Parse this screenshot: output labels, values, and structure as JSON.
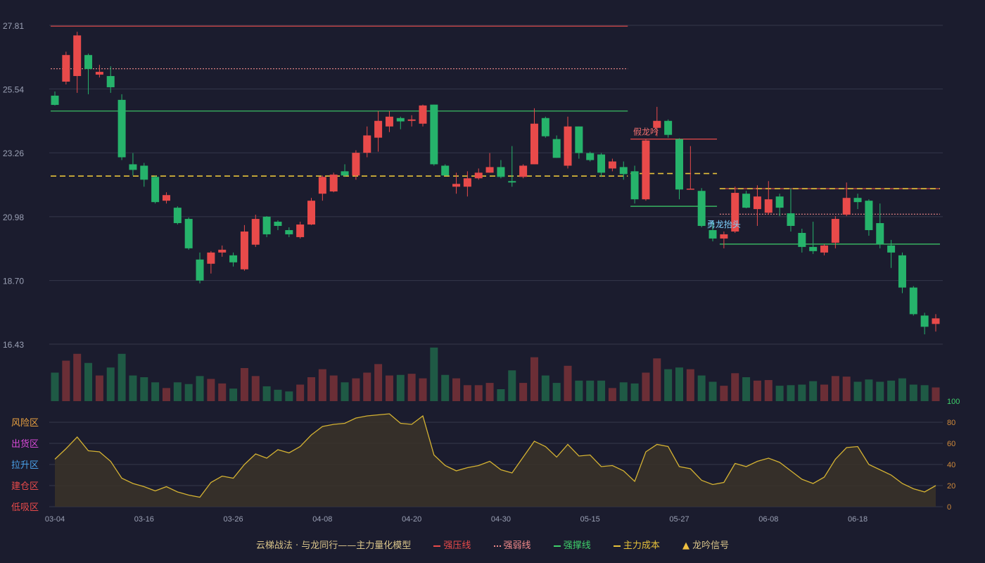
{
  "chart_data": {
    "type": "candlestick",
    "price_axis": {
      "ticks": [
        27.81,
        25.54,
        23.26,
        20.98,
        18.7,
        16.43
      ],
      "range": [
        16.43,
        27.81
      ]
    },
    "x_tick_labels": [
      "03-04",
      "03-16",
      "03-26",
      "04-08",
      "04-20",
      "04-30",
      "05-15",
      "05-27",
      "06-08",
      "06-18"
    ],
    "x_tick_indices": [
      0,
      8,
      16,
      24,
      32,
      40,
      48,
      56,
      64,
      72
    ],
    "candles": [
      [
        25.3,
        24.97,
        25.45,
        24.95
      ],
      [
        25.8,
        26.75,
        26.87,
        25.7
      ],
      [
        26.0,
        27.45,
        27.58,
        25.4
      ],
      [
        26.75,
        26.25,
        26.8,
        25.35
      ],
      [
        26.05,
        26.15,
        26.4,
        25.95
      ],
      [
        26.0,
        25.6,
        26.35,
        25.4
      ],
      [
        25.15,
        23.1,
        25.35,
        23.0
      ],
      [
        22.85,
        22.65,
        23.25,
        22.45
      ],
      [
        22.8,
        22.3,
        22.9,
        22.05
      ],
      [
        22.4,
        21.5,
        22.45,
        21.45
      ],
      [
        21.55,
        21.75,
        21.85,
        21.45
      ],
      [
        21.3,
        20.75,
        21.35,
        20.7
      ],
      [
        20.9,
        19.85,
        20.95,
        19.8
      ],
      [
        19.45,
        18.7,
        19.7,
        18.6
      ],
      [
        19.3,
        19.7,
        19.75,
        18.95
      ],
      [
        19.7,
        19.8,
        19.95,
        19.55
      ],
      [
        19.6,
        19.35,
        19.7,
        19.2
      ],
      [
        19.1,
        20.45,
        20.68,
        19.05
      ],
      [
        19.98,
        20.9,
        21.05,
        19.9
      ],
      [
        20.98,
        20.35,
        21.0,
        20.25
      ],
      [
        20.8,
        20.65,
        20.85,
        20.5
      ],
      [
        20.5,
        20.35,
        20.6,
        20.25
      ],
      [
        20.25,
        20.7,
        20.8,
        20.2
      ],
      [
        20.7,
        21.55,
        21.65,
        20.68
      ],
      [
        21.8,
        22.4,
        22.45,
        21.55
      ],
      [
        21.88,
        22.48,
        22.55,
        21.85
      ],
      [
        22.6,
        22.45,
        22.85,
        22.4
      ],
      [
        22.45,
        23.26,
        23.35,
        22.3
      ],
      [
        23.26,
        23.88,
        24.2,
        23.1
      ],
      [
        23.8,
        24.4,
        24.75,
        23.3
      ],
      [
        24.2,
        24.55,
        24.75,
        24.0
      ],
      [
        24.5,
        24.38,
        24.55,
        24.1
      ],
      [
        24.4,
        24.45,
        24.6,
        24.2
      ],
      [
        24.3,
        24.95,
        24.98,
        24.2
      ],
      [
        24.98,
        22.85,
        24.98,
        22.8
      ],
      [
        22.8,
        22.45,
        22.85,
        22.45
      ],
      [
        22.05,
        22.15,
        22.55,
        21.8
      ],
      [
        22.05,
        22.35,
        22.6,
        21.7
      ],
      [
        22.35,
        22.55,
        22.7,
        22.3
      ],
      [
        22.55,
        22.75,
        23.25,
        22.55
      ],
      [
        22.75,
        22.4,
        23.0,
        22.35
      ],
      [
        22.25,
        22.2,
        23.5,
        22.05
      ],
      [
        22.4,
        22.8,
        22.85,
        22.35
      ],
      [
        22.85,
        24.3,
        24.85,
        22.85
      ],
      [
        24.5,
        23.85,
        24.55,
        23.8
      ],
      [
        23.75,
        23.08,
        23.88,
        23.08
      ],
      [
        22.8,
        24.2,
        24.55,
        22.7
      ],
      [
        24.2,
        23.25,
        24.2,
        23.05
      ],
      [
        23.25,
        23.0,
        23.3,
        22.95
      ],
      [
        23.2,
        22.55,
        23.25,
        22.4
      ],
      [
        22.7,
        22.95,
        23.05,
        22.6
      ],
      [
        22.75,
        22.5,
        22.95,
        22.3
      ],
      [
        22.6,
        21.6,
        22.8,
        21.45
      ],
      [
        21.6,
        23.7,
        23.75,
        21.55
      ],
      [
        24.15,
        24.4,
        24.9,
        23.85
      ],
      [
        24.4,
        23.9,
        24.45,
        23.8
      ],
      [
        23.75,
        21.95,
        23.78,
        21.6
      ],
      [
        21.95,
        21.98,
        23.5,
        21.98
      ],
      [
        21.9,
        20.65,
        22.0,
        20.6
      ],
      [
        20.5,
        20.2,
        20.8,
        20.1
      ],
      [
        20.2,
        20.35,
        20.45,
        19.85
      ],
      [
        20.45,
        21.83,
        22.05,
        20.4
      ],
      [
        21.8,
        21.3,
        21.9,
        21.28
      ],
      [
        21.25,
        21.7,
        22.1,
        20.65
      ],
      [
        21.12,
        21.6,
        22.25,
        21.05
      ],
      [
        21.7,
        21.3,
        21.8,
        21.0
      ],
      [
        21.1,
        20.65,
        22.0,
        20.45
      ],
      [
        20.4,
        19.9,
        20.55,
        19.7
      ],
      [
        19.9,
        19.75,
        20.8,
        19.65
      ],
      [
        19.7,
        19.95,
        20.0,
        19.6
      ],
      [
        20.05,
        20.9,
        21.0,
        19.85
      ],
      [
        21.05,
        21.65,
        22.2,
        21.0
      ],
      [
        21.65,
        21.5,
        21.8,
        21.25
      ],
      [
        21.55,
        20.5,
        21.6,
        20.3
      ],
      [
        20.75,
        20.0,
        21.45,
        19.85
      ],
      [
        19.95,
        19.7,
        20.15,
        19.15
      ],
      [
        19.6,
        18.45,
        19.7,
        18.25
      ],
      [
        18.45,
        17.5,
        18.5,
        17.45
      ],
      [
        17.45,
        17.05,
        17.55,
        16.78
      ],
      [
        17.15,
        17.35,
        17.5,
        16.88
      ]
    ],
    "volume": [
      0.5,
      0.71,
      0.83,
      0.67,
      0.45,
      0.59,
      0.83,
      0.45,
      0.42,
      0.33,
      0.23,
      0.33,
      0.3,
      0.44,
      0.39,
      0.31,
      0.22,
      0.58,
      0.44,
      0.26,
      0.2,
      0.17,
      0.29,
      0.42,
      0.56,
      0.45,
      0.33,
      0.4,
      0.5,
      0.65,
      0.45,
      0.46,
      0.48,
      0.4,
      0.94,
      0.46,
      0.4,
      0.28,
      0.28,
      0.32,
      0.21,
      0.54,
      0.32,
      0.77,
      0.45,
      0.32,
      0.62,
      0.36,
      0.36,
      0.36,
      0.23,
      0.33,
      0.31,
      0.5,
      0.75,
      0.56,
      0.59,
      0.56,
      0.45,
      0.34,
      0.27,
      0.49,
      0.42,
      0.36,
      0.37,
      0.27,
      0.28,
      0.29,
      0.35,
      0.29,
      0.44,
      0.43,
      0.34,
      0.38,
      0.34,
      0.36,
      0.4,
      0.29,
      0.28,
      0.24
    ],
    "volume_colors_note": "",
    "indicator": {
      "ticks": [
        0,
        20,
        40,
        60,
        80,
        100
      ],
      "zones": [
        "风险区",
        "出货区",
        "拉升区",
        "建仓区",
        "低吸区"
      ],
      "values": [
        45,
        55,
        66,
        53,
        52,
        43,
        27,
        22,
        19,
        15,
        19,
        14,
        11,
        9,
        23,
        29,
        27,
        40,
        50,
        46,
        54,
        51,
        57,
        68,
        76,
        78,
        79,
        84,
        86,
        87,
        88,
        79,
        78,
        86,
        49,
        39,
        34,
        37,
        39,
        43,
        35,
        32,
        47,
        62,
        57,
        47,
        59,
        48,
        49,
        38,
        39,
        34,
        24,
        52,
        59,
        57,
        38,
        36,
        25,
        21,
        23,
        41,
        38,
        43,
        46,
        42,
        34,
        26,
        22,
        28,
        45,
        56,
        57,
        40,
        35,
        30,
        22,
        17,
        14,
        20
      ]
    },
    "reference_lines": [
      {
        "name": "强压线",
        "value": 27.78,
        "from": 0,
        "to": 51,
        "color": "#e84a4a",
        "style": "solid"
      },
      {
        "name": "强弱线",
        "value": 26.26,
        "from": 0,
        "to": 51,
        "color": "#f08a8a",
        "style": "dotted"
      },
      {
        "name": "强撑线",
        "value": 24.75,
        "from": 0,
        "to": 51,
        "color": "#3ecf6a",
        "style": "solid"
      },
      {
        "name": "主力成本",
        "value": 22.43,
        "from": 0,
        "to": 51,
        "color": "#e6c13a",
        "style": "dashed"
      },
      {
        "name": "强压线",
        "value": 23.75,
        "from": 52,
        "to": 59,
        "color": "#e84a4a",
        "style": "solid"
      },
      {
        "name": "强撑线",
        "value": 21.35,
        "from": 52,
        "to": 59,
        "color": "#3ecf6a",
        "style": "solid"
      },
      {
        "name": "主力成本",
        "value": 22.52,
        "from": 52,
        "to": 59,
        "color": "#e6c13a",
        "style": "dashed"
      },
      {
        "name": "强压线",
        "value": 21.98,
        "from": 60,
        "to": 79,
        "color": "#e84a4a",
        "style": "solid"
      },
      {
        "name": "强弱线",
        "value": 21.07,
        "from": 60,
        "to": 79,
        "color": "#f08a8a",
        "style": "dotted"
      },
      {
        "name": "强撑线",
        "value": 20.0,
        "from": 60,
        "to": 79,
        "color": "#3ecf6a",
        "style": "solid"
      },
      {
        "name": "主力成本",
        "value": 21.98,
        "from": 60,
        "to": 79,
        "color": "#e6c13a",
        "style": "dashed"
      }
    ],
    "annotations": [
      {
        "text": "假龙吟",
        "index": 53,
        "color": "#f07070"
      },
      {
        "text": "勇龙抬头",
        "index": 60,
        "color": "#7fd3ff"
      }
    ],
    "legend": {
      "title": "云梯战法 · 与龙同行——主力量化模型",
      "items": [
        {
          "label": "强压线",
          "color": "#e84a4a",
          "kind": "line"
        },
        {
          "label": "强弱线",
          "color": "#f08a8a",
          "kind": "dotted"
        },
        {
          "label": "强撑线",
          "color": "#3ecf6a",
          "kind": "line"
        },
        {
          "label": "主力成本",
          "color": "#e6c13a",
          "kind": "dashed"
        },
        {
          "label": "龙吟信号",
          "color": "#f0c040",
          "kind": "triangle"
        }
      ]
    },
    "colors": {
      "up": "#e84a4a",
      "down": "#26b36b",
      "bg": "#1b1c2e",
      "grid": "#35374b",
      "indicator": "#d4b232"
    }
  }
}
